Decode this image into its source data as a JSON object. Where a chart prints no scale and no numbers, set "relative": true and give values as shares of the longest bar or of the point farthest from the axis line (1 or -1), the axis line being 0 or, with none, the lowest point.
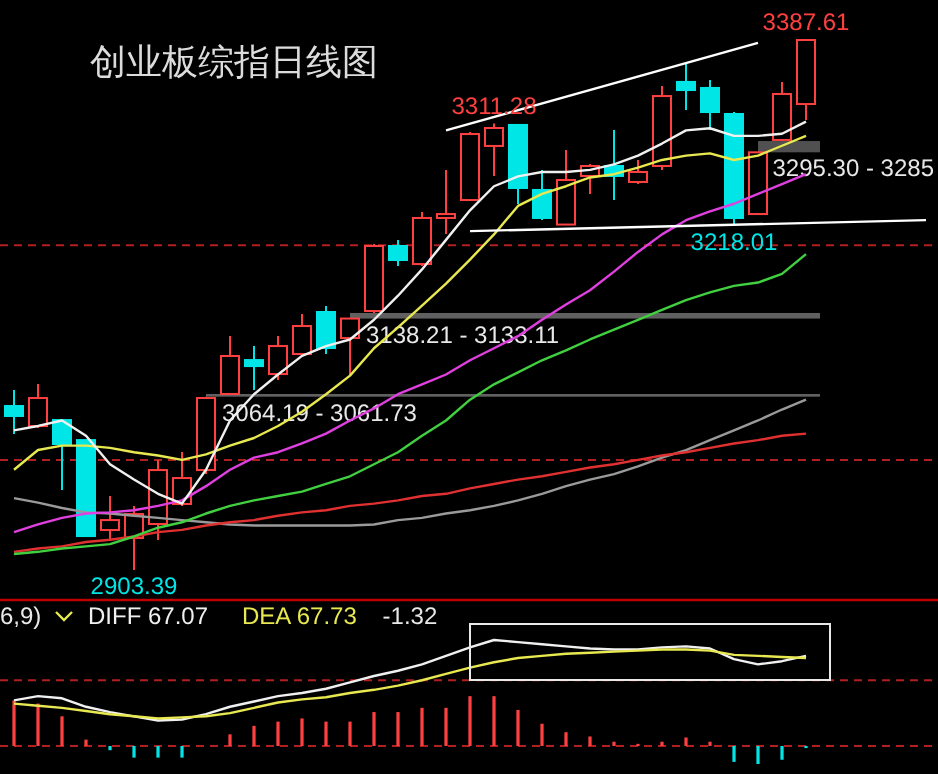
{
  "chart_data": [
    {
      "type": "candlestick",
      "title": "创业板综指日线图",
      "categories": [
        null,
        null,
        null,
        null,
        null,
        null,
        null,
        null,
        null,
        null,
        null,
        null,
        null,
        null,
        null,
        null,
        null,
        null,
        null,
        null,
        null,
        null,
        null,
        null,
        null,
        null,
        null,
        null,
        null,
        null,
        null,
        null,
        null,
        null,
        null,
        null,
        null,
        null,
        null
      ],
      "ohlc": [
        [
          3053.2,
          3067.8,
          3027.6,
          3044.1
        ],
        [
          3034.9,
          3073.3,
          3033.1,
          3060.5
        ],
        [
          3040.4,
          3040.4,
          2976.5,
          3018.5
        ],
        [
          3022.1,
          3022.1,
          2934.4,
          2934.4
        ],
        [
          2939.9,
          2971.0,
          2930.8,
          2949.0
        ],
        [
          2932.6,
          2961.8,
          2903.39,
          2954.5
        ],
        [
          2945.4,
          3003.9,
          2930.8,
          2994.7
        ],
        [
          2963.7,
          3011.2,
          2961.8,
          2987.4
        ],
        [
          2994.7,
          3061.73,
          2991.1,
          3060.5
        ],
        [
          3064.19,
          3117.2,
          3064.19,
          3098.9
        ],
        [
          3095.2,
          3108.0,
          3067.8,
          3089.7
        ],
        [
          3082.4,
          3117.2,
          3076.9,
          3108.0
        ],
        [
          3100.7,
          3137.3,
          3100.7,
          3126.3
        ],
        [
          3139.1,
          3144.6,
          3100.7,
          3106.2
        ],
        [
          3115.3,
          3133.11,
          3080.6,
          3133.11
        ],
        [
          3140.0,
          3201.2,
          3138.21,
          3199.4
        ],
        [
          3199.4,
          3204.9,
          3181.1,
          3186.6
        ],
        [
          3182.9,
          3230.5,
          3181.1,
          3225.0
        ],
        [
          3225.0,
          3268.8,
          3210.4,
          3228.6
        ],
        [
          3241.4,
          3303.5,
          3241.4,
          3301.7
        ],
        [
          3290.8,
          3311.28,
          3263.4,
          3307.2
        ],
        [
          3310.0,
          3310.0,
          3237.8,
          3252.4
        ],
        [
          3250.6,
          3268.8,
          3223.1,
          3225.0
        ],
        [
          3219.0,
          3287.1,
          3218.5,
          3259.7
        ],
        [
          3263.4,
          3274.3,
          3246.9,
          3272.5
        ],
        [
          3272.5,
          3305.4,
          3241.4,
          3263.4
        ],
        [
          3257.9,
          3278.0,
          3256.0,
          3267.0
        ],
        [
          3272.5,
          3345.6,
          3268.8,
          3336.4
        ],
        [
          3349.3,
          3365.7,
          3323.6,
          3341.9
        ],
        [
          3343.8,
          3351.1,
          3305.4,
          3321.8
        ],
        [
          3320.0,
          3321.8,
          3218.01,
          3225.0
        ],
        [
          3228.6,
          3285.0,
          3228.6,
          3285.0
        ],
        [
          3296.3,
          3349.3,
          3295.3,
          3338.3
        ],
        [
          3329.1,
          3387.61,
          3314.5,
          3387.61
        ],
        null,
        null,
        null,
        null,
        null
      ],
      "colors": [
        "#00e5e5",
        "#ff4040",
        "#00e5e5",
        "#00e5e5",
        "#ff4040",
        "#ff4040",
        "#ff4040",
        "#ff4040",
        "#ff4040",
        "#ff4040",
        "#00e5e5",
        "#ff4040",
        "#ff4040",
        "#00e5e5",
        "#ff4040",
        "#ff4040",
        "#00e5e5",
        "#ff4040",
        "#ff4040",
        "#ff4040",
        "#ff4040",
        "#00e5e5",
        "#00e5e5",
        "#ff4040",
        "#ff4040",
        "#00e5e5",
        "#ff4040",
        "#ff4040",
        "#00e5e5",
        "#00e5e5",
        "#00e5e5",
        "#ff4040",
        "#ff4040",
        "#ff4040",
        null,
        null,
        null,
        null,
        null
      ],
      "series": [
        {
          "type": "line",
          "color": "#9a9a9a",
          "values": [
            2969,
            2965,
            2960,
            2956,
            2955,
            2953,
            2951,
            2949,
            2947,
            2945,
            2944,
            2944,
            2944,
            2944,
            2944,
            2945,
            2949,
            2951,
            2955,
            2958,
            2962,
            2967,
            2973,
            2980,
            2986,
            2991,
            2998,
            3006,
            3013,
            3022,
            3031,
            3040,
            3050,
            3059,
            null,
            null,
            null,
            null,
            null
          ]
        },
        {
          "type": "line",
          "color": "#e03030",
          "values": [
            2920,
            2923,
            2925,
            2929,
            2931,
            2934,
            2938,
            2940,
            2944,
            2947,
            2949,
            2953,
            2956,
            2958,
            2962,
            2964,
            2967,
            2971,
            2973,
            2978,
            2982,
            2986,
            2989,
            2993,
            2997,
            3000,
            3004,
            3008,
            3011,
            3015,
            3019,
            3022,
            3026,
            3028,
            null,
            null,
            null,
            null,
            null
          ]
        },
        {
          "type": "line",
          "color": "#40d040",
          "values": [
            2918,
            2920,
            2923,
            2925,
            2927,
            2934,
            2942,
            2947,
            2955,
            2962,
            2967,
            2971,
            2975,
            2982,
            2989,
            3000,
            3011,
            3026,
            3040,
            3059,
            3073,
            3084,
            3095,
            3104,
            3114,
            3123,
            3132,
            3141,
            3150,
            3157,
            3163,
            3166,
            3174,
            3192,
            null,
            null,
            null,
            null,
            null
          ]
        },
        {
          "type": "line",
          "color": "#e040e0",
          "values": [
            2938,
            2945,
            2951,
            2955,
            2956,
            2958,
            2962,
            2967,
            2980,
            2995,
            3006,
            3011,
            3019,
            3028,
            3040,
            3051,
            3064,
            3073,
            3082,
            3095,
            3106,
            3117,
            3132,
            3146,
            3159,
            3176,
            3194,
            3210,
            3223,
            3231,
            3238,
            3247,
            3256,
            3265,
            null,
            null,
            null,
            null,
            null
          ]
        },
        {
          "type": "line",
          "color": "#e8e850",
          "values": [
            2995,
            3013,
            3017,
            3017,
            3015,
            3011,
            3008,
            3004,
            3009,
            3017,
            3024,
            3035,
            3048,
            3064,
            3081,
            3106,
            3125,
            3145,
            3165,
            3187,
            3210,
            3236,
            3247,
            3254,
            3262,
            3265,
            3271,
            3278,
            3282,
            3284,
            3278,
            3282,
            3291,
            3300,
            null,
            null,
            null,
            null,
            null
          ]
        },
        {
          "type": "line",
          "color": "#f0f0f0",
          "values": [
            3031,
            3035,
            3040,
            3026,
            3000,
            2986,
            2973,
            2964,
            2995,
            3040,
            3064,
            3082,
            3099,
            3108,
            3114,
            3132,
            3154,
            3178,
            3205,
            3232,
            3254,
            3263,
            3267,
            3267,
            3269,
            3274,
            3282,
            3293,
            3305,
            3307,
            3300,
            3300,
            3302,
            3313,
            null,
            null,
            null,
            null,
            null
          ]
        },
        {
          "type": "line",
          "color": "#ffffff",
          "values": [
            null,
            null,
            null,
            null,
            null,
            null,
            null,
            null,
            null,
            null,
            null,
            null,
            null,
            null,
            null,
            null,
            null,
            null,
            3305,
            null,
            null,
            null,
            null,
            null,
            null,
            null,
            null,
            null,
            null,
            null,
            null,
            3385,
            null,
            null,
            null,
            null,
            null,
            null,
            null
          ]
        },
        {
          "type": "line",
          "color": "#ffffff",
          "values": [
            null,
            null,
            null,
            null,
            null,
            null,
            null,
            null,
            null,
            null,
            null,
            null,
            null,
            null,
            null,
            null,
            null,
            null,
            null,
            3213,
            null,
            null,
            null,
            null,
            null,
            null,
            null,
            null,
            null,
            null,
            null,
            null,
            null,
            null,
            null,
            null,
            null,
            null,
            3223
          ]
        }
      ],
      "bands": [
        {
          "axis": "y",
          "from": 3133.11,
          "to": 3138.21,
          "label": "3138.21 - 3133.11",
          "color": "#606060"
        },
        {
          "axis": "y",
          "from": 3061.73,
          "to": 3064.19,
          "label": "3064.19 - 3061.73",
          "color": "#606060"
        },
        {
          "axis": "y",
          "from": 3285.0,
          "to": 3295.3,
          "label": "3295.30 - 3285",
          "color": "#505050"
        }
      ],
      "ref_lines": [
        {
          "axis": "y",
          "value": 3200,
          "color": "#b02020",
          "line_style": "dashed"
        },
        {
          "axis": "y",
          "value": 3004,
          "color": "#b02020",
          "line_style": "dashed"
        }
      ],
      "annotations": [
        {
          "text": "3311.28",
          "y": 3311.28
        },
        {
          "text": "3387.61",
          "y": 3387.61
        },
        {
          "text": "2903.39",
          "y": 2903.39
        },
        {
          "text": "3218.01",
          "y": 3218.01
        }
      ]
    },
    {
      "type": "line",
      "relative": true,
      "categories": [
        null,
        null,
        null,
        null,
        null,
        null,
        null,
        null,
        null,
        null,
        null,
        null,
        null,
        null,
        null,
        null,
        null,
        null,
        null,
        null,
        null,
        null,
        null,
        null,
        null,
        null,
        null,
        null,
        null,
        null,
        null,
        null,
        null,
        null,
        null,
        null,
        null,
        null,
        null
      ],
      "series": [
        {
          "type": "bar",
          "color": "#ff4040",
          "values": [
            0.43,
            0.4,
            0.28,
            0.06,
            -0.04,
            -0.11,
            -0.11,
            -0.11,
            0,
            0.11,
            0.19,
            0.23,
            0.26,
            0.23,
            0.23,
            0.32,
            0.32,
            0.36,
            0.36,
            0.47,
            0.47,
            0.34,
            0.21,
            0.13,
            0.09,
            0.04,
            0.02,
            0.04,
            0.08,
            0.04,
            -0.15,
            -0.17,
            -0.13,
            -0.02,
            null,
            null,
            null,
            null,
            null
          ],
          "colors": [
            "#ff4040",
            "#ff4040",
            "#ff4040",
            "#ff4040",
            "#00e5e5",
            "#00e5e5",
            "#00e5e5",
            "#00e5e5",
            null,
            "#ff4040",
            "#ff4040",
            "#ff4040",
            "#ff4040",
            "#ff4040",
            "#ff4040",
            "#ff4040",
            "#ff4040",
            "#ff4040",
            "#ff4040",
            "#ff4040",
            "#ff4040",
            "#ff4040",
            "#ff4040",
            "#ff4040",
            "#ff4040",
            "#ff4040",
            "#ff4040",
            "#ff4040",
            "#ff4040",
            "#ff4040",
            "#00e5e5",
            "#00e5e5",
            "#00e5e5",
            "#00e5e5",
            null,
            null,
            null,
            null,
            null
          ]
        },
        {
          "type": "line",
          "name": "DIFF",
          "color": "#f0f0f0",
          "values": [
            0.43,
            0.47,
            0.45,
            0.37,
            0.32,
            0.28,
            0.24,
            0.25,
            0.3,
            0.37,
            0.42,
            0.47,
            0.5,
            0.54,
            0.6,
            0.66,
            0.71,
            0.77,
            0.85,
            0.93,
            1.0,
            0.98,
            0.96,
            0.94,
            0.92,
            0.91,
            0.91,
            0.93,
            0.94,
            0.92,
            0.82,
            0.77,
            0.8,
            0.85,
            null,
            null,
            null,
            null,
            null
          ]
        },
        {
          "type": "line",
          "name": "DEA",
          "color": "#e8e850",
          "values": [
            0.4,
            0.38,
            0.36,
            0.33,
            0.3,
            0.28,
            0.26,
            0.27,
            0.28,
            0.31,
            0.36,
            0.41,
            0.44,
            0.46,
            0.5,
            0.53,
            0.57,
            0.62,
            0.68,
            0.74,
            0.79,
            0.83,
            0.85,
            0.87,
            0.88,
            0.89,
            0.9,
            0.91,
            0.91,
            0.9,
            0.86,
            0.85,
            0.84,
            0.83,
            null,
            null,
            null,
            null,
            null
          ]
        }
      ],
      "ref_lines": [
        {
          "axis": "y",
          "value": 0,
          "color": "#b02020",
          "line_style": "dashed"
        },
        {
          "axis": "y",
          "value": 0.62,
          "color": "#b02020",
          "line_style": "dashed"
        }
      ],
      "annotations": [
        "6,9)",
        "67.07",
        "67.73",
        "-1.32"
      ]
    }
  ]
}
